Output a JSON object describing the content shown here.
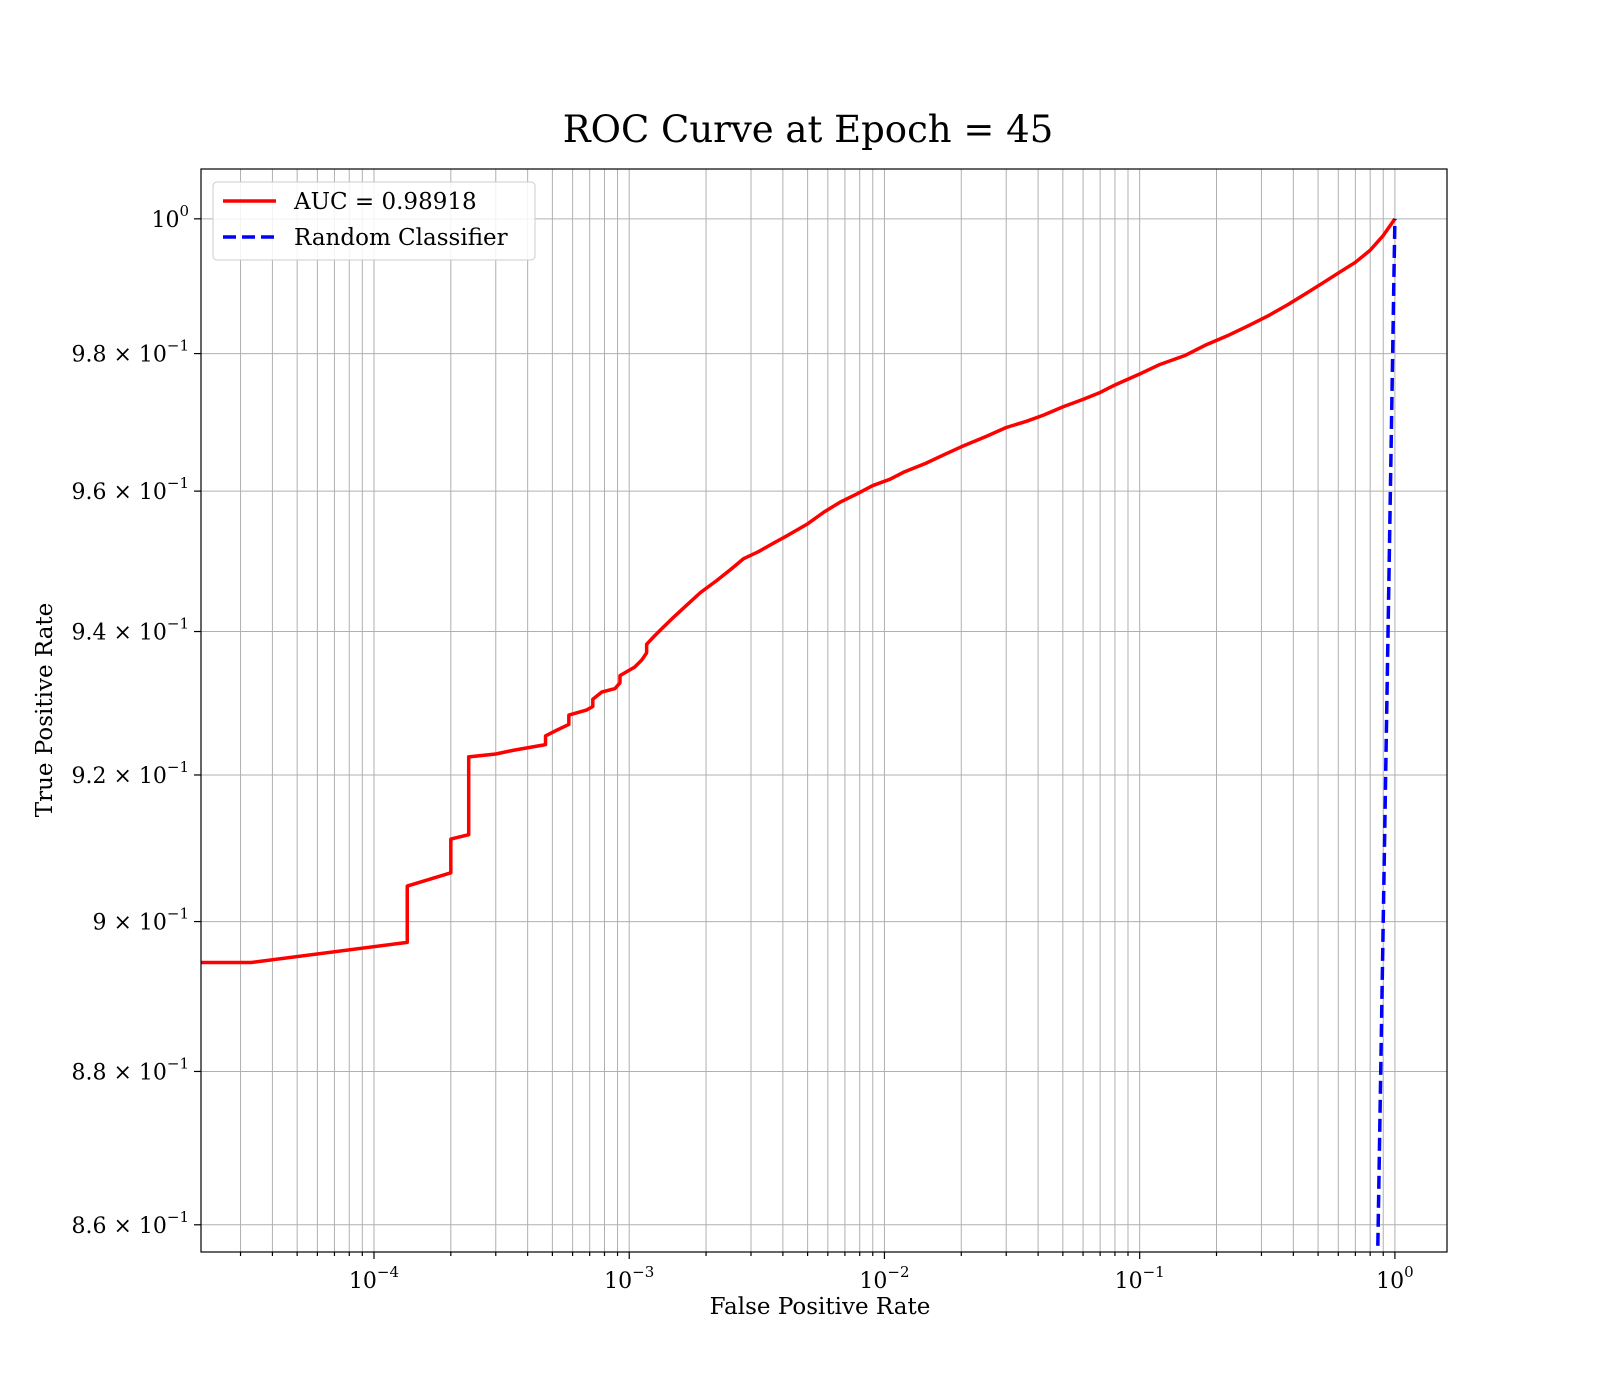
{
  "chart_data": {
    "type": "line",
    "title": "ROC Curve at Epoch = 45",
    "xlabel": "False Positive Rate",
    "ylabel": "True Positive Rate",
    "xscale": "log",
    "yscale": "log",
    "xlim": [
      2.1e-05,
      1.6
    ],
    "ylim": [
      0.8565,
      1.0075
    ],
    "grid": true,
    "grid_minor": true,
    "legend_position": "top-left",
    "x_ticks": [
      {
        "value": 0.0001,
        "base": "10",
        "exp": "−4"
      },
      {
        "value": 0.001,
        "base": "10",
        "exp": "−3"
      },
      {
        "value": 0.01,
        "base": "10",
        "exp": "−2"
      },
      {
        "value": 0.1,
        "base": "10",
        "exp": "−1"
      },
      {
        "value": 1,
        "base": "10",
        "exp": "0"
      }
    ],
    "y_ticks": [
      {
        "value": 0.86,
        "base": "8.6 × 10",
        "exp": "−1"
      },
      {
        "value": 0.88,
        "base": "8.8 × 10",
        "exp": "−1"
      },
      {
        "value": 0.9,
        "base": "9 × 10",
        "exp": "−1"
      },
      {
        "value": 0.92,
        "base": "9.2 × 10",
        "exp": "−1"
      },
      {
        "value": 0.94,
        "base": "9.4 × 10",
        "exp": "−1"
      },
      {
        "value": 0.96,
        "base": "9.6 × 10",
        "exp": "−1"
      },
      {
        "value": 0.98,
        "base": "9.8 × 10",
        "exp": "−1"
      },
      {
        "value": 1.0,
        "base": "10",
        "exp": "0"
      }
    ],
    "series": [
      {
        "name": "AUC = 0.98918",
        "color": "#ff0000",
        "style": "solid",
        "x": [
          2.1e-05,
          3.3e-05,
          0.000135,
          0.000135,
          0.0002,
          0.0002,
          0.000235,
          0.000235,
          0.0003,
          0.00035,
          0.00047,
          0.00047,
          0.00052,
          0.00058,
          0.00058,
          0.00068,
          0.00072,
          0.00072,
          0.00078,
          0.00088,
          0.00092,
          0.00092,
          0.00105,
          0.00112,
          0.00117,
          0.00117,
          0.00125,
          0.00135,
          0.0015,
          0.0017,
          0.0019,
          0.0022,
          0.0025,
          0.0028,
          0.0032,
          0.0037,
          0.0042,
          0.005,
          0.0058,
          0.0067,
          0.0078,
          0.009,
          0.0105,
          0.012,
          0.0145,
          0.017,
          0.02,
          0.025,
          0.03,
          0.036,
          0.042,
          0.05,
          0.06,
          0.07,
          0.08,
          0.1,
          0.12,
          0.15,
          0.18,
          0.22,
          0.27,
          0.32,
          0.38,
          0.45,
          0.52,
          0.6,
          0.7,
          0.8,
          0.9,
          1.0
        ],
        "y": [
          0.8945,
          0.8945,
          0.8972,
          0.9048,
          0.9066,
          0.9112,
          0.9118,
          0.9225,
          0.9229,
          0.9234,
          0.9242,
          0.9254,
          0.9262,
          0.927,
          0.9283,
          0.929,
          0.9295,
          0.9305,
          0.9315,
          0.932,
          0.9328,
          0.9338,
          0.935,
          0.936,
          0.937,
          0.9382,
          0.9393,
          0.9405,
          0.9421,
          0.9439,
          0.9455,
          0.9472,
          0.9488,
          0.9503,
          0.9513,
          0.9526,
          0.9537,
          0.9553,
          0.957,
          0.9584,
          0.9596,
          0.9608,
          0.9617,
          0.9628,
          0.964,
          0.9652,
          0.9664,
          0.9679,
          0.9692,
          0.9701,
          0.971,
          0.9722,
          0.9733,
          0.9743,
          0.9754,
          0.977,
          0.9784,
          0.9797,
          0.9812,
          0.9826,
          0.9842,
          0.9856,
          0.9872,
          0.9889,
          0.9904,
          0.9919,
          0.9935,
          0.9953,
          0.9975,
          1.0
        ]
      },
      {
        "name": "Random Classifier",
        "color": "#0000ff",
        "style": "dashed",
        "x": [
          0.85,
          0.9,
          0.95,
          1.0
        ],
        "y": [
          0.85,
          0.9,
          0.95,
          1.0
        ]
      }
    ]
  }
}
